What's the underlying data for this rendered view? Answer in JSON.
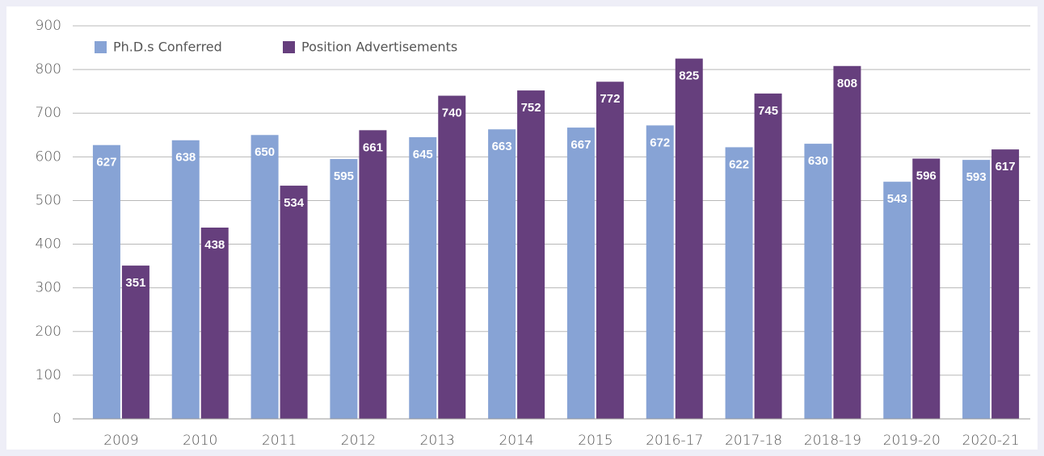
{
  "chart_data": {
    "type": "bar",
    "categories": [
      "2009",
      "2010",
      "2011",
      "2012",
      "2013",
      "2014",
      "2015",
      "2016-17",
      "2017-18",
      "2018-19",
      "2019-20",
      "2020-21"
    ],
    "series": [
      {
        "name": "Ph.D.s Conferred",
        "color": "#87a3d5",
        "values": [
          627,
          638,
          650,
          595,
          645,
          663,
          667,
          672,
          622,
          630,
          543,
          593
        ]
      },
      {
        "name": "Position Advertisements",
        "color": "#663f7d",
        "values": [
          351,
          438,
          534,
          661,
          740,
          752,
          772,
          825,
          745,
          808,
          596,
          617
        ]
      }
    ],
    "ylim": [
      0,
      900
    ],
    "yticks": [
      0,
      100,
      200,
      300,
      400,
      500,
      600,
      700,
      800,
      900
    ],
    "grid": true,
    "legend": "top-left"
  }
}
